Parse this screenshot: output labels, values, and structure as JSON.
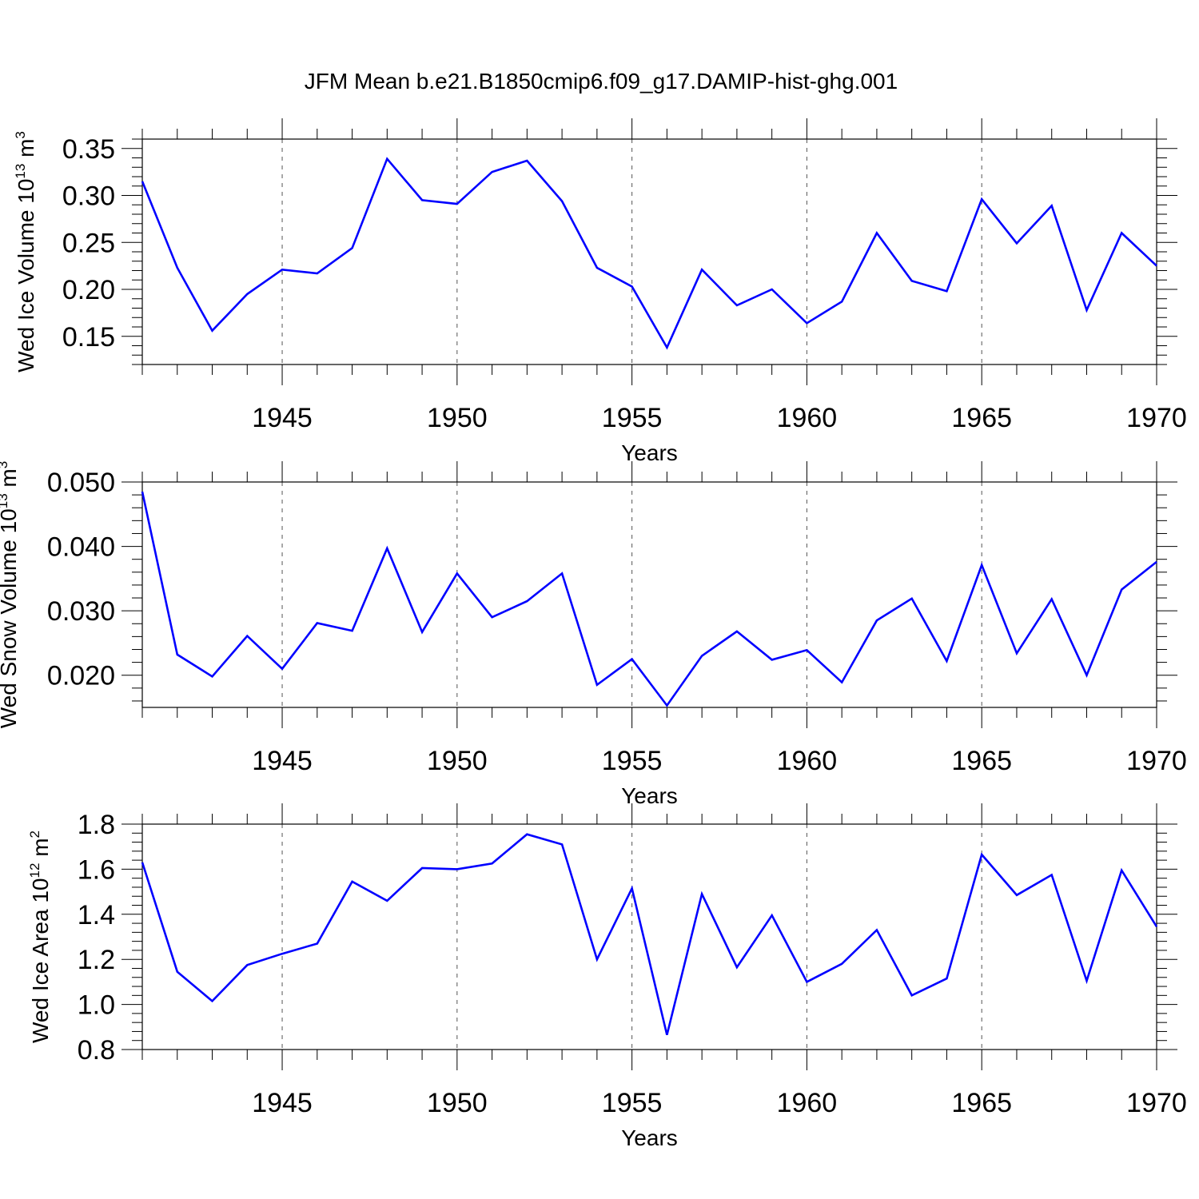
{
  "figure": {
    "title": "JFM Mean b.e21.B1850cmip6.f09_g17.DAMIP-hist-ghg.001"
  },
  "colors": {
    "line": "#0000ff",
    "axes": "#000000",
    "grid": "#555555"
  },
  "chart_data": [
    {
      "type": "line",
      "ylabel": "Wed Ice Volume 10",
      "ylabel_exp": "13",
      "ylabel_unit": " m",
      "ylabel_unit_exp": "3",
      "xlabel": "Years",
      "xlim": [
        1941,
        1970
      ],
      "ylim": [
        0.12,
        0.36
      ],
      "yticks": [
        0.15,
        0.2,
        0.25,
        0.3,
        0.35
      ],
      "ytick_labels": [
        "0.15",
        "0.20",
        "0.25",
        "0.30",
        "0.35"
      ],
      "xticks": [
        1945,
        1950,
        1955,
        1960,
        1965,
        1970
      ],
      "xtick_labels": [
        "1945",
        "1950",
        "1955",
        "1960",
        "1965",
        "1970"
      ],
      "grid": "vertical dashed at major x ticks",
      "x": [
        1941,
        1942,
        1943,
        1944,
        1945,
        1946,
        1947,
        1948,
        1949,
        1950,
        1951,
        1952,
        1953,
        1954,
        1955,
        1956,
        1957,
        1958,
        1959,
        1960,
        1961,
        1962,
        1963,
        1964,
        1965,
        1966,
        1967,
        1968,
        1969,
        1970
      ],
      "series": [
        {
          "name": "Wed Ice Volume",
          "values": [
            0.315,
            0.223,
            0.156,
            0.195,
            0.221,
            0.217,
            0.244,
            0.339,
            0.295,
            0.291,
            0.325,
            0.337,
            0.294,
            0.223,
            0.203,
            0.138,
            0.221,
            0.183,
            0.2,
            0.164,
            0.187,
            0.26,
            0.209,
            0.198,
            0.296,
            0.249,
            0.289,
            0.178,
            0.26,
            0.225
          ]
        }
      ]
    },
    {
      "type": "line",
      "ylabel": "Wed Snow Volume 10",
      "ylabel_exp": "13",
      "ylabel_unit": " m",
      "ylabel_unit_exp": "3",
      "xlabel": "Years",
      "xlim": [
        1941,
        1970
      ],
      "ylim": [
        0.015,
        0.05
      ],
      "yticks": [
        0.02,
        0.03,
        0.04,
        0.05
      ],
      "ytick_labels": [
        "0.020",
        "0.030",
        "0.040",
        "0.050"
      ],
      "xticks": [
        1945,
        1950,
        1955,
        1960,
        1965,
        1970
      ],
      "xtick_labels": [
        "1945",
        "1950",
        "1955",
        "1960",
        "1965",
        "1970"
      ],
      "grid": "vertical dashed at major x ticks",
      "x": [
        1941,
        1942,
        1943,
        1944,
        1945,
        1946,
        1947,
        1948,
        1949,
        1950,
        1951,
        1952,
        1953,
        1954,
        1955,
        1956,
        1957,
        1958,
        1959,
        1960,
        1961,
        1962,
        1963,
        1964,
        1965,
        1966,
        1967,
        1968,
        1969,
        1970
      ],
      "series": [
        {
          "name": "Wed Snow Volume",
          "values": [
            0.0485,
            0.0232,
            0.0198,
            0.0261,
            0.021,
            0.0281,
            0.0269,
            0.0397,
            0.0267,
            0.0358,
            0.029,
            0.0315,
            0.0358,
            0.0185,
            0.0225,
            0.0153,
            0.023,
            0.0268,
            0.0224,
            0.0239,
            0.0189,
            0.0285,
            0.0319,
            0.0222,
            0.0371,
            0.0234,
            0.0318,
            0.02,
            0.0333,
            0.0376
          ]
        }
      ]
    },
    {
      "type": "line",
      "ylabel": "Wed Ice Area 10",
      "ylabel_exp": "12",
      "ylabel_unit": " m",
      "ylabel_unit_exp": "2",
      "xlabel": "Years",
      "xlim": [
        1941,
        1970
      ],
      "ylim": [
        0.8,
        1.8
      ],
      "yticks": [
        0.8,
        1.0,
        1.2,
        1.4,
        1.6,
        1.8
      ],
      "ytick_labels": [
        "0.8",
        "1.0",
        "1.2",
        "1.4",
        "1.6",
        "1.8"
      ],
      "xticks": [
        1945,
        1950,
        1955,
        1960,
        1965,
        1970
      ],
      "xtick_labels": [
        "1945",
        "1950",
        "1955",
        "1960",
        "1965",
        "1970"
      ],
      "grid": "vertical dashed at major x ticks",
      "x": [
        1941,
        1942,
        1943,
        1944,
        1945,
        1946,
        1947,
        1948,
        1949,
        1950,
        1951,
        1952,
        1953,
        1954,
        1955,
        1956,
        1957,
        1958,
        1959,
        1960,
        1961,
        1962,
        1963,
        1964,
        1965,
        1966,
        1967,
        1968,
        1969,
        1970
      ],
      "series": [
        {
          "name": "Wed Ice Area",
          "values": [
            1.63,
            1.145,
            1.015,
            1.175,
            1.225,
            1.27,
            1.545,
            1.46,
            1.605,
            1.6,
            1.625,
            1.755,
            1.71,
            1.2,
            1.515,
            0.865,
            1.49,
            1.165,
            1.395,
            1.1,
            1.18,
            1.33,
            1.04,
            1.115,
            1.665,
            1.485,
            1.575,
            1.105,
            1.595,
            1.345
          ]
        }
      ]
    }
  ]
}
